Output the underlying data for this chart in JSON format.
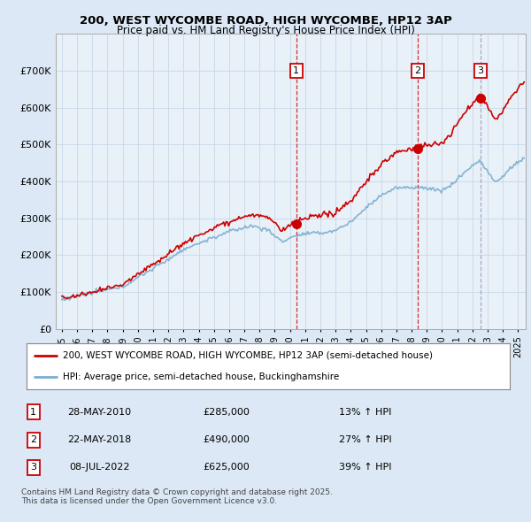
{
  "title_line1": "200, WEST WYCOMBE ROAD, HIGH WYCOMBE, HP12 3AP",
  "title_line2": "Price paid vs. HM Land Registry's House Price Index (HPI)",
  "ylim": [
    0,
    800000
  ],
  "yticks": [
    0,
    100000,
    200000,
    300000,
    400000,
    500000,
    600000,
    700000
  ],
  "ytick_labels": [
    "£0",
    "£100K",
    "£200K",
    "£300K",
    "£400K",
    "£500K",
    "£600K",
    "£700K"
  ],
  "xlim_start": 1994.6,
  "xlim_end": 2025.5,
  "fig_bg_color": "#dce8f5",
  "plot_bg_color_left": "#ffffff",
  "plot_bg_color_right": "#dce8f5",
  "red_line_color": "#cc0000",
  "blue_line_color": "#7aadcf",
  "grid_color": "#c8d8e8",
  "sale_dates": [
    2010.41,
    2018.39,
    2022.52
  ],
  "sale_labels": [
    "1",
    "2",
    "3"
  ],
  "sale_prices": [
    285000,
    490000,
    625000
  ],
  "sale_date_strs": [
    "28-MAY-2010",
    "22-MAY-2018",
    "08-JUL-2022"
  ],
  "sale_hpi_pct": [
    "13% ↑ HPI",
    "27% ↑ HPI",
    "39% ↑ HPI"
  ],
  "legend_red_label": "200, WEST WYCOMBE ROAD, HIGH WYCOMBE, HP12 3AP (semi-detached house)",
  "legend_blue_label": "HPI: Average price, semi-detached house, Buckinghamshire",
  "footnote": "Contains HM Land Registry data © Crown copyright and database right 2025.\nThis data is licensed under the Open Government Licence v3.0.",
  "dashed_line_color": "#cc0000",
  "dashed_line_color3": "#aaaacc"
}
